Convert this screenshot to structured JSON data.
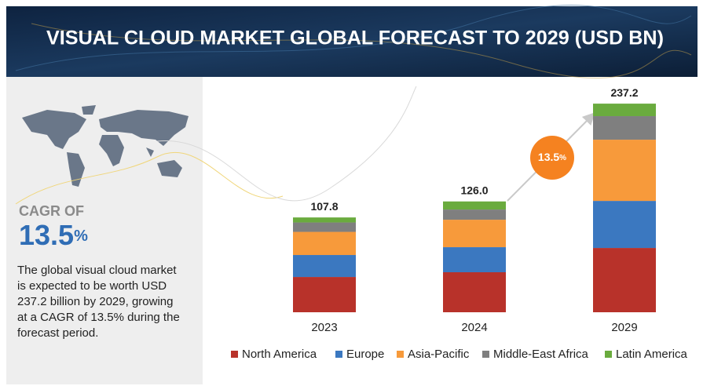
{
  "chart_data": {
    "type": "stacked-bar",
    "title": "VISUAL CLOUD MARKET GLOBAL FORECAST TO 2029 (USD BN)",
    "categories": [
      "2023",
      "2024",
      "2029"
    ],
    "series": [
      {
        "name": "North America",
        "color": "#b8322a",
        "values": [
          40.1,
          45.5,
          73.1
        ]
      },
      {
        "name": "Europe",
        "color": "#3b78c0",
        "values": [
          25.0,
          28.5,
          53.5
        ]
      },
      {
        "name": "Asia-Pacific",
        "color": "#f79a3b",
        "values": [
          26.3,
          31.2,
          69.6
        ]
      },
      {
        "name": "Middle-East Africa",
        "color": "#7f7f7f",
        "values": [
          10.7,
          11.6,
          26.8
        ]
      },
      {
        "name": "Latin America",
        "color": "#6aab3e",
        "values": [
          5.7,
          9.2,
          14.2
        ]
      }
    ],
    "totals": [
      107.8,
      126,
      237.2
    ],
    "totals_value_labels": [
      "107.8",
      "126.0",
      "237.2"
    ],
    "cagr_bubble": {
      "value": "13.5",
      "unit": "%",
      "color": "#f58220"
    },
    "legend": "bottom"
  },
  "side_panel": {
    "cagr_heading": "CAGR OF",
    "cagr_value": "13.5",
    "cagr_unit": "%",
    "description_lines": [
      "The global visual cloud market",
      "is expected to be worth USD",
      "237.2 billion by 2029, growing",
      "at a CAGR of 13.5% during the",
      "forecast period."
    ]
  }
}
